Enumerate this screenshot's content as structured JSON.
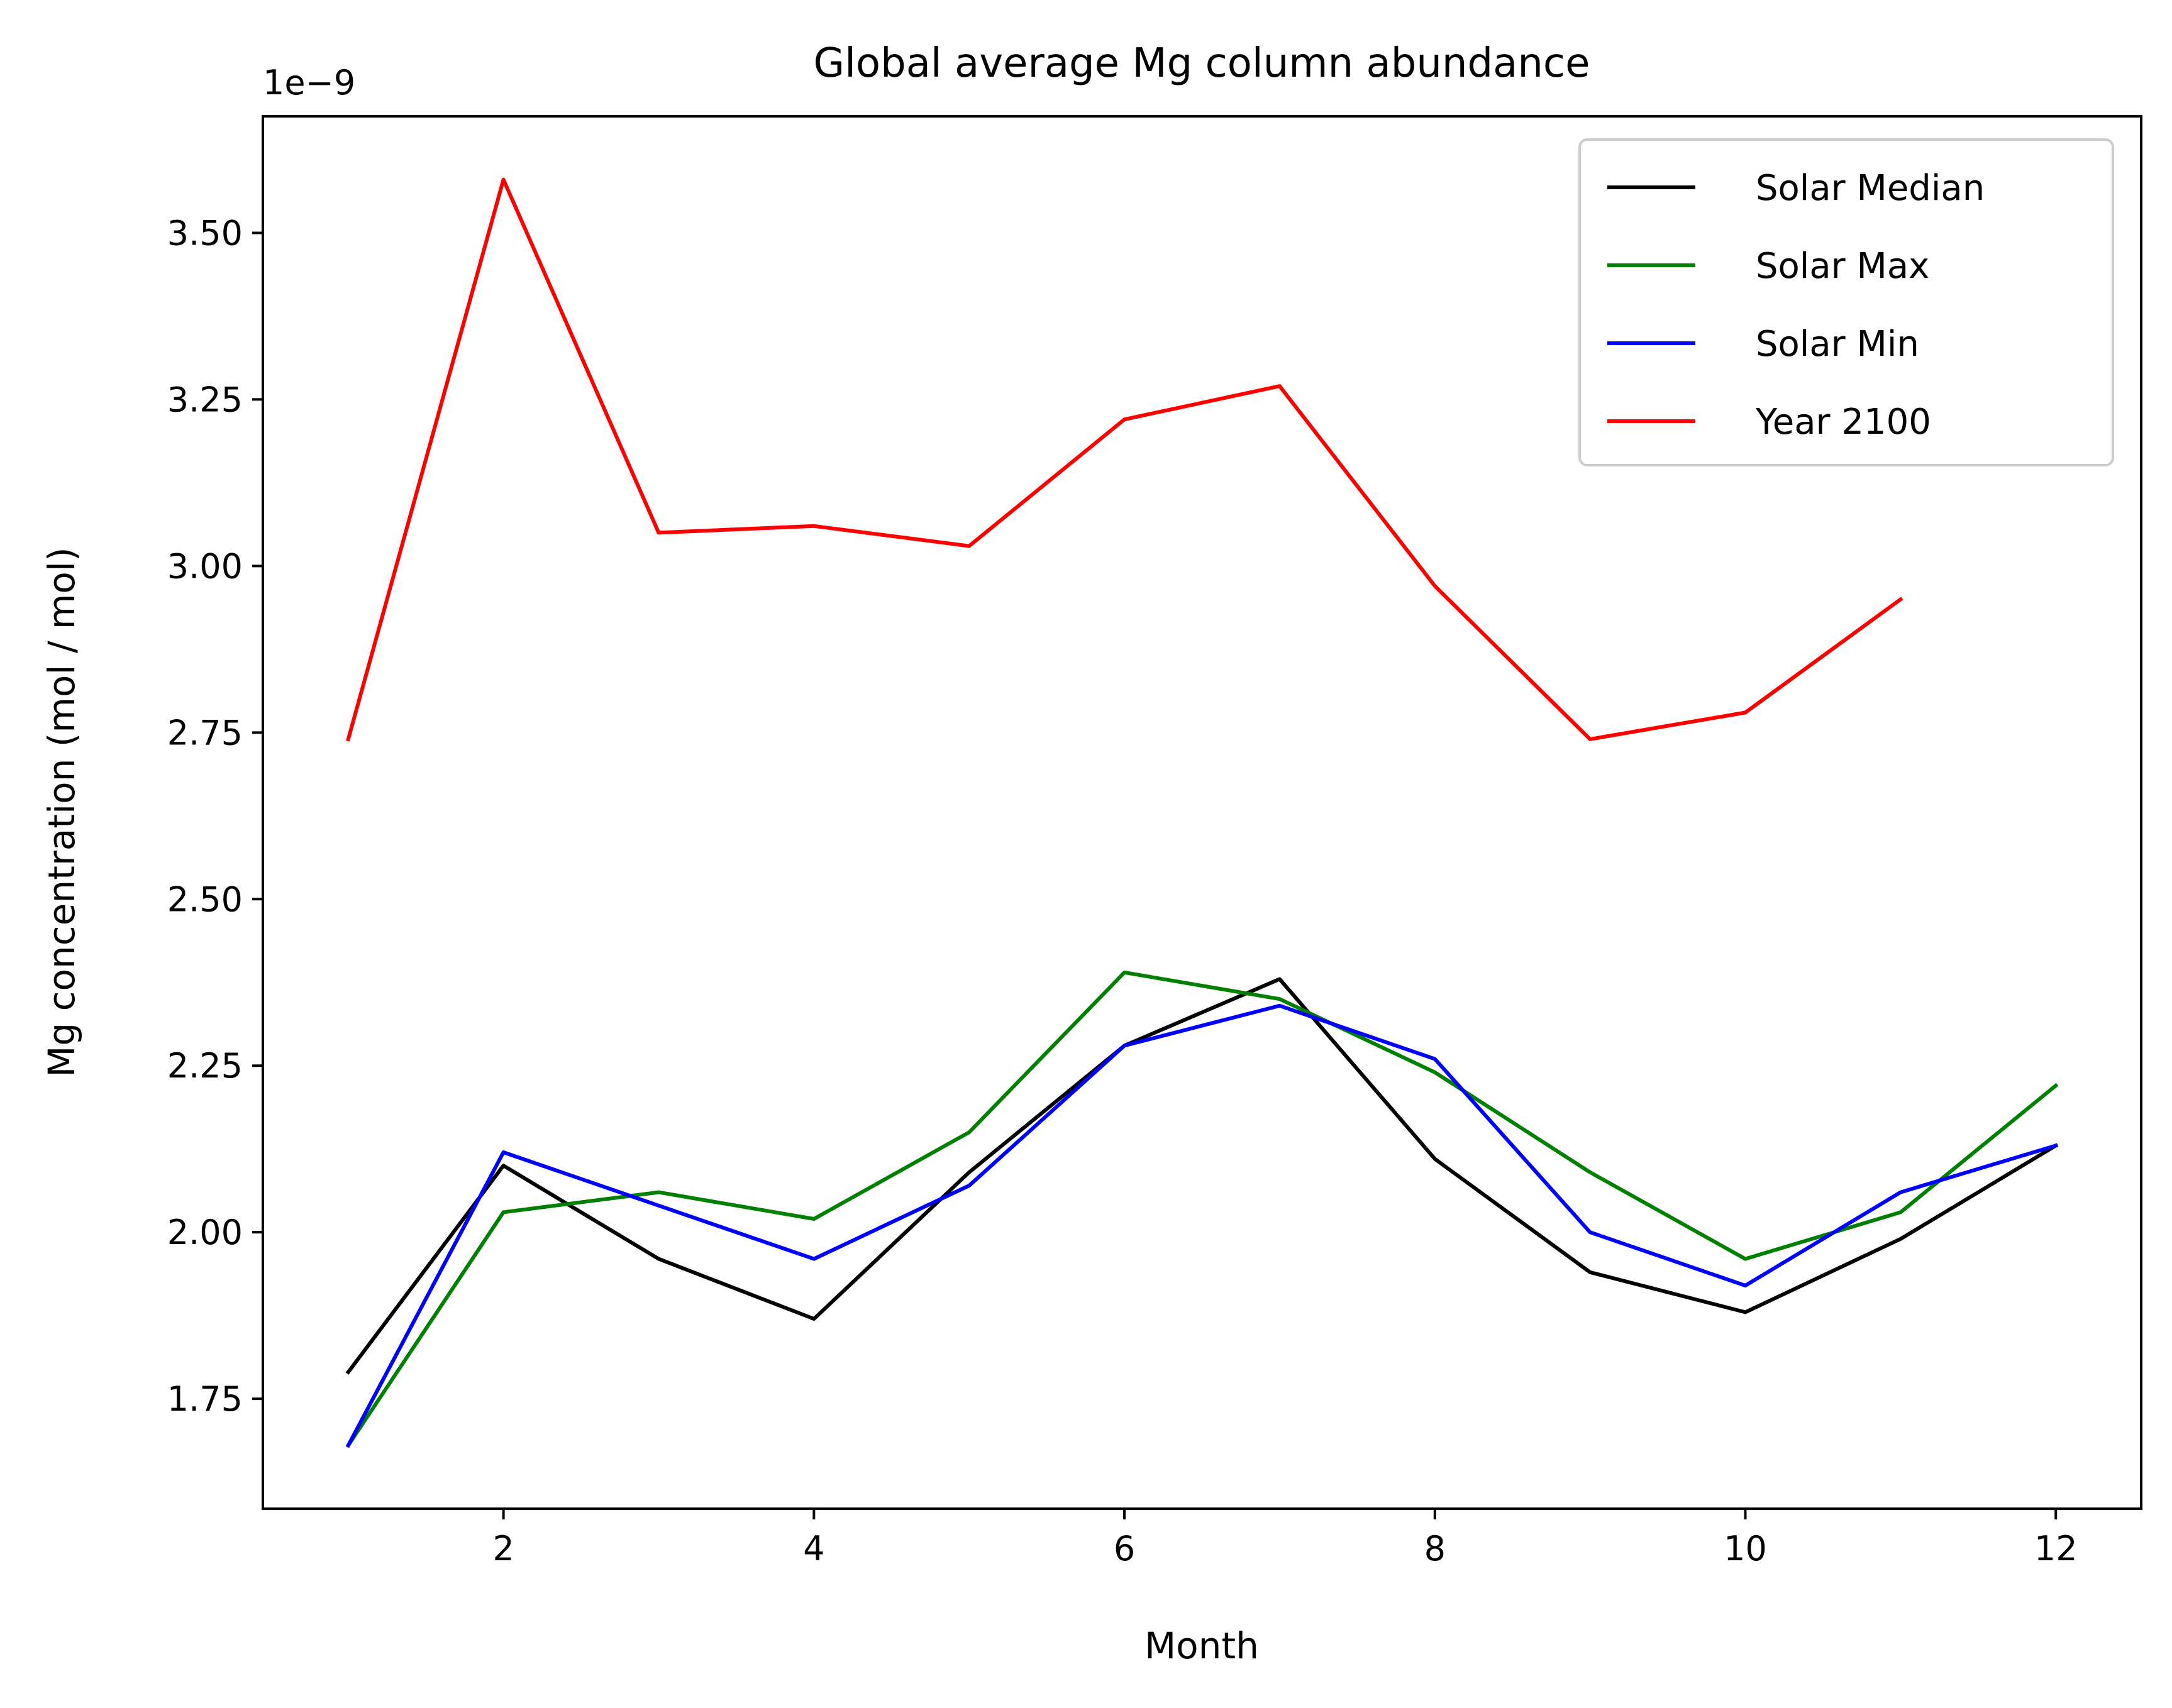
{
  "chart_data": {
    "type": "line",
    "title": "Global average Mg column abundance",
    "xlabel": "Month",
    "ylabel": "Mg concentration (mol / mol)",
    "y_offset_label": "1e−9",
    "xlim": [
      0.45,
      12.55
    ],
    "ylim": [
      1.585,
      3.675
    ],
    "x_ticks": [
      2,
      4,
      6,
      8,
      10,
      12
    ],
    "x_tick_labels": [
      "2",
      "4",
      "6",
      "8",
      "10",
      "12"
    ],
    "y_ticks": [
      1.75,
      2.0,
      2.25,
      2.5,
      2.75,
      3.0,
      3.25,
      3.5
    ],
    "y_tick_labels": [
      "1.75",
      "2.00",
      "2.25",
      "2.50",
      "2.75",
      "3.00",
      "3.25",
      "3.50"
    ],
    "grid": false,
    "legend_position": "top-right",
    "series": [
      {
        "name": "Solar Median",
        "color": "#000000",
        "x": [
          1,
          2,
          3,
          4,
          5,
          6,
          7,
          8,
          9,
          10,
          11,
          12
        ],
        "values": [
          1.79,
          2.1,
          1.96,
          1.87,
          2.09,
          2.28,
          2.38,
          2.11,
          1.94,
          1.88,
          1.99,
          2.13
        ]
      },
      {
        "name": "Solar Max",
        "color": "#008000",
        "x": [
          1,
          2,
          3,
          4,
          5,
          6,
          7,
          8,
          9,
          10,
          11,
          12
        ],
        "values": [
          1.68,
          2.03,
          2.06,
          2.02,
          2.15,
          2.39,
          2.35,
          2.24,
          2.09,
          1.96,
          2.03,
          2.22
        ]
      },
      {
        "name": "Solar Min",
        "color": "#0000ff",
        "x": [
          1,
          2,
          3,
          4,
          5,
          6,
          7,
          8,
          9,
          10,
          11,
          12
        ],
        "values": [
          1.68,
          2.12,
          2.04,
          1.96,
          2.07,
          2.28,
          2.34,
          2.26,
          2.0,
          1.92,
          2.06,
          2.13
        ]
      },
      {
        "name": "Year 2100",
        "color": "#ff0000",
        "x": [
          1,
          2,
          3,
          4,
          5,
          6,
          7,
          8,
          9,
          10,
          11
        ],
        "values": [
          2.74,
          3.58,
          3.05,
          3.06,
          3.03,
          3.22,
          3.27,
          2.97,
          2.74,
          2.78,
          2.95
        ]
      }
    ]
  }
}
